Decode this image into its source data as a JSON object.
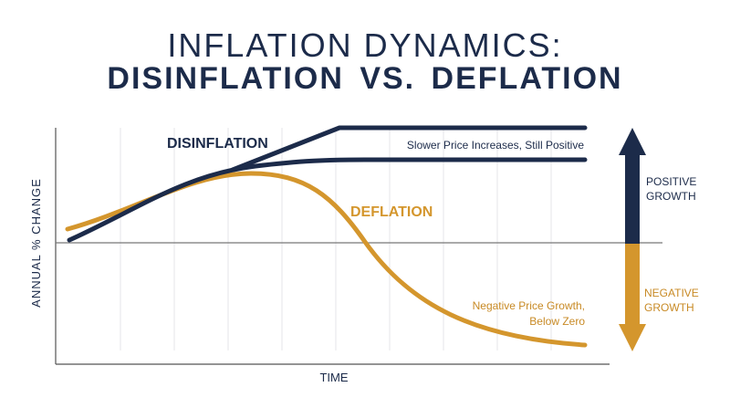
{
  "title": {
    "line1": "INFLATION DYNAMICS:",
    "line2": "DISINFLATION  VS. DEFLATION"
  },
  "axes": {
    "y_label": "ANNUAL % CHANGE",
    "x_label": "TIME"
  },
  "curves": {
    "disinflation": {
      "label": "DISINFLATION",
      "note": "Slower Price Increases, Still Positive",
      "color": "#1c2b4a"
    },
    "deflation": {
      "label": "DEFLATION",
      "note_line1": "Negative Price Growth,",
      "note_line2": "Below Zero",
      "color": "#d4962d"
    }
  },
  "arrow": {
    "positive_line1": "POSITIVE",
    "positive_line2": "GROWTH",
    "negative_line1": "NEGATIVE",
    "negative_line2": "GROWTH",
    "positive_color": "#1c2b4a",
    "negative_color": "#d4962d"
  },
  "colors": {
    "grid": "#e4e6ea",
    "axis": "#555555",
    "zero_line": "#777777"
  }
}
